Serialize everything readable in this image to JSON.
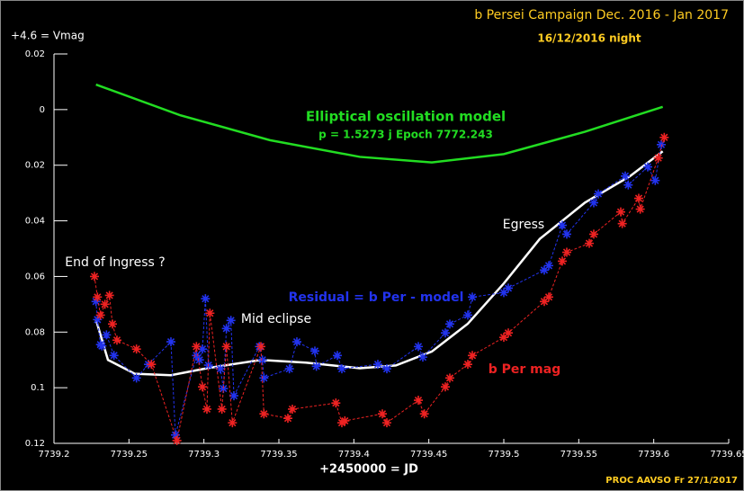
{
  "chart_data": {
    "type": "scatter",
    "title": "b Persei Campaign Dec. 2016 - Jan 2017",
    "subtitle": "16/12/2016 night",
    "y_label": "+4.6 = Vmag",
    "x_label": "+2450000 = JD",
    "footer": "PROC AAVSO Fr  27/1/2017",
    "model_note": "p = 1.5273 j     Epoch 7772.243",
    "annotations": [
      "End of Ingress ?",
      "Mid eclipse",
      "Egress"
    ],
    "xlim": [
      7739.2,
      7739.65
    ],
    "xticks": [
      7739.2,
      7739.25,
      7739.3,
      7739.35,
      7739.4,
      7739.45,
      7739.5,
      7739.55,
      7739.6,
      7739.65
    ],
    "ylim": [
      -0.02,
      0.12
    ],
    "yticks": [
      {
        "value": -0.02,
        "label": "0.02"
      },
      0,
      0.02,
      0.04,
      0.06,
      0.08,
      0.1,
      0.12
    ],
    "y_inverted": true,
    "series": [
      {
        "name": "Elliptical oscillation model",
        "color": "#22dd22",
        "style": "line",
        "x": [
          7739.228,
          7739.284,
          7739.344,
          7739.404,
          7739.452,
          7739.5,
          7739.554,
          7739.606
        ],
        "values": [
          -0.009,
          0.002,
          0.011,
          0.017,
          0.019,
          0.016,
          0.008,
          -0.001
        ]
      },
      {
        "color": "#ffffff",
        "style": "line",
        "x": [
          7739.228,
          7739.236,
          7739.254,
          7739.278,
          7739.302,
          7739.338,
          7739.368,
          7739.404,
          7739.428,
          7739.452,
          7739.476,
          7739.5,
          7739.524,
          7739.554,
          7739.584,
          7739.606
        ],
        "values": [
          0.0755,
          0.09,
          0.095,
          0.0955,
          0.093,
          0.09,
          0.091,
          0.093,
          0.092,
          0.087,
          0.077,
          0.0625,
          0.0465,
          0.0335,
          0.024,
          0.015
        ]
      },
      {
        "name": "Residual = b Per - model",
        "color": "#2233ee",
        "style": "markers",
        "x": [
          7739.228,
          7739.229,
          7739.231,
          7739.232,
          7739.235,
          7739.24,
          7739.255,
          7739.263,
          7739.278,
          7739.281,
          7739.295,
          7739.297,
          7739.299,
          7739.301,
          7739.303,
          7739.311,
          7739.313,
          7739.315,
          7739.318,
          7739.32,
          7739.337,
          7739.339,
          7739.34,
          7739.357,
          7739.362,
          7739.374,
          7739.375,
          7739.389,
          7739.392,
          7739.416,
          7739.422,
          7739.443,
          7739.446,
          7739.461,
          7739.464,
          7739.476,
          7739.479,
          7739.5,
          7739.503,
          7739.527,
          7739.53,
          7739.539,
          7739.542,
          7739.56,
          7739.563,
          7739.581,
          7739.583,
          7739.596,
          7739.601,
          7739.605
        ],
        "values": [
          0.069,
          0.0755,
          0.0845,
          0.085,
          0.081,
          0.0884,
          0.0965,
          0.0916,
          0.0835,
          0.117,
          0.0884,
          0.09,
          0.0861,
          0.068,
          0.0919,
          0.0932,
          0.1003,
          0.0787,
          0.0758,
          0.1029,
          0.0852,
          0.09,
          0.0965,
          0.0932,
          0.0835,
          0.0868,
          0.0923,
          0.0884,
          0.0932,
          0.0916,
          0.0932,
          0.0852,
          0.089,
          0.0803,
          0.0771,
          0.0739,
          0.0674,
          0.0658,
          0.0642,
          0.0577,
          0.0561,
          0.0416,
          0.0448,
          0.0335,
          0.0303,
          0.0239,
          0.0271,
          0.0206,
          0.0255,
          0.0126
        ]
      },
      {
        "name": "b Per mag",
        "color": "#ee2222",
        "style": "markers",
        "x": [
          7739.227,
          7739.229,
          7739.231,
          7739.234,
          7739.237,
          7739.239,
          7739.242,
          7739.255,
          7739.265,
          7739.282,
          7739.295,
          7739.299,
          7739.302,
          7739.304,
          7739.312,
          7739.315,
          7739.319,
          7739.338,
          7739.34,
          7739.356,
          7739.359,
          7739.388,
          7739.392,
          7739.394,
          7739.419,
          7739.422,
          7739.443,
          7739.447,
          7739.461,
          7739.464,
          7739.476,
          7739.479,
          7739.5,
          7739.503,
          7739.527,
          7739.53,
          7739.539,
          7739.542,
          7739.557,
          7739.56,
          7739.578,
          7739.579,
          7739.59,
          7739.591,
          7739.603,
          7739.607
        ],
        "values": [
          0.06,
          0.0674,
          0.0739,
          0.07,
          0.0668,
          0.0771,
          0.0829,
          0.0861,
          0.0916,
          0.119,
          0.0852,
          0.0997,
          0.1077,
          0.0732,
          0.1077,
          0.0852,
          0.1126,
          0.0852,
          0.1094,
          0.111,
          0.1077,
          0.1055,
          0.1126,
          0.1119,
          0.1094,
          0.1126,
          0.1045,
          0.1094,
          0.0997,
          0.0965,
          0.0916,
          0.0884,
          0.0819,
          0.0803,
          0.069,
          0.0674,
          0.0545,
          0.0513,
          0.0481,
          0.0448,
          0.0368,
          0.041,
          0.0319,
          0.0358,
          0.0174,
          0.01
        ]
      }
    ]
  }
}
